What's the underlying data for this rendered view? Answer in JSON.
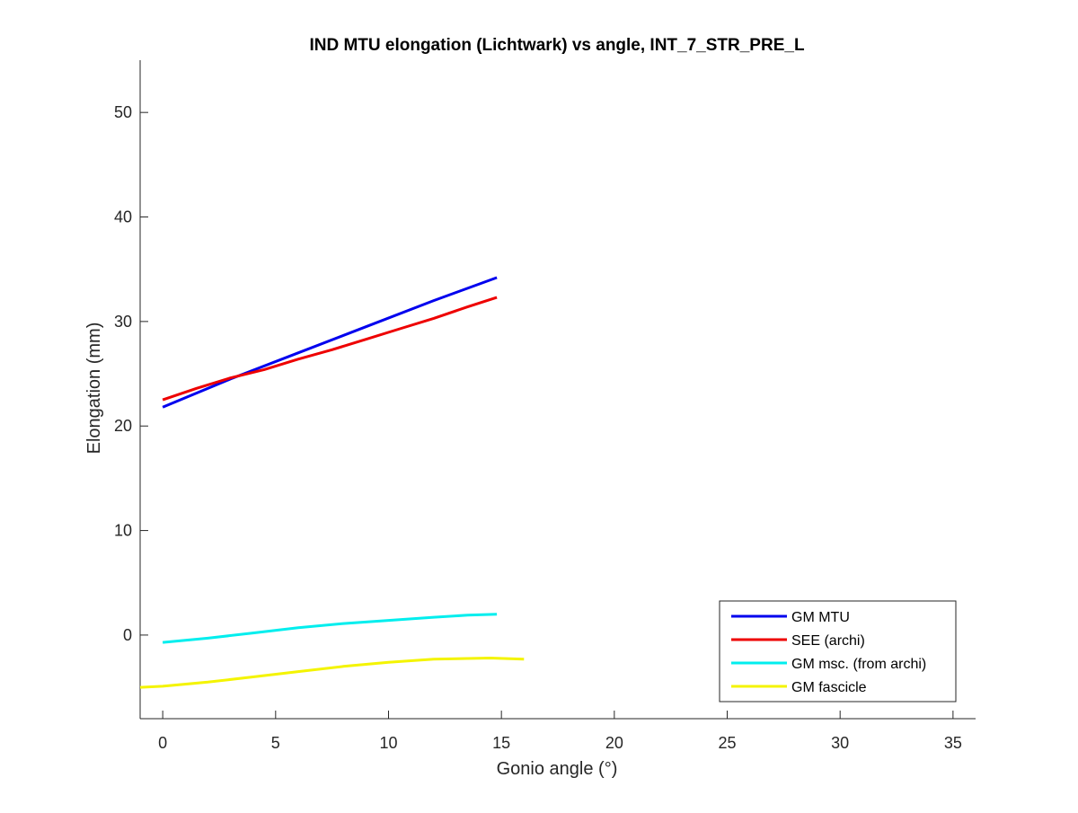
{
  "chart_data": {
    "type": "line",
    "title": "IND MTU elongation (Lichtwark) vs angle, INT_7_STR_PRE_L",
    "xlabel": "Gonio angle (°)",
    "ylabel": "Elongation (mm)",
    "xlim": [
      -1,
      36
    ],
    "ylim": [
      -8,
      55
    ],
    "xticks": [
      0,
      5,
      10,
      15,
      20,
      25,
      30,
      35
    ],
    "yticks": [
      0,
      10,
      20,
      30,
      40,
      50
    ],
    "xtick_labels": [
      "0",
      "5",
      "10",
      "15",
      "20",
      "25",
      "30",
      "35"
    ],
    "ytick_labels": [
      "0",
      "10",
      "20",
      "30",
      "40",
      "50"
    ],
    "grid": false,
    "legend_position": "bottom-right",
    "series": [
      {
        "name": "GM MTU",
        "color": "#0000ee",
        "x": [
          0,
          3,
          6,
          9,
          12,
          14.8
        ],
        "y": [
          21.8,
          24.5,
          27.0,
          29.5,
          32.0,
          34.2
        ]
      },
      {
        "name": "SEE (archi)",
        "color": "#ee0000",
        "x": [
          0,
          1.5,
          3,
          4.5,
          6,
          7.5,
          9,
          10.5,
          12,
          13.5,
          14.8
        ],
        "y": [
          22.5,
          23.6,
          24.6,
          25.4,
          26.4,
          27.3,
          28.3,
          29.3,
          30.3,
          31.4,
          32.3
        ]
      },
      {
        "name": "GM msc. (from archi)",
        "color": "#00eeee",
        "x": [
          0,
          2,
          4,
          6,
          8,
          10,
          12,
          13.5,
          14.8
        ],
        "y": [
          -0.7,
          -0.3,
          0.2,
          0.7,
          1.1,
          1.4,
          1.7,
          1.9,
          2.0
        ]
      },
      {
        "name": "GM fascicle",
        "color": "#f4f400",
        "x": [
          -1,
          0,
          2,
          4,
          6,
          8,
          10,
          12,
          14.5,
          16
        ],
        "y": [
          -5.0,
          -4.9,
          -4.5,
          -4.0,
          -3.5,
          -3.0,
          -2.6,
          -2.3,
          -2.2,
          -2.3
        ]
      }
    ]
  }
}
